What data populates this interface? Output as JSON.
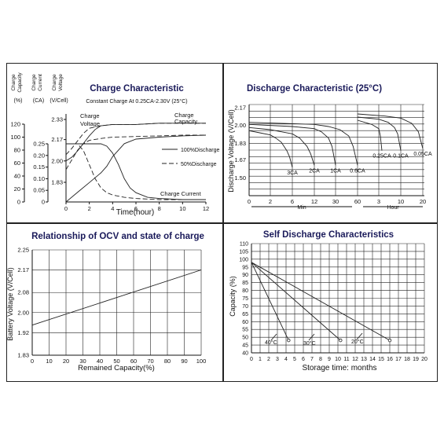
{
  "chart_data": [
    {
      "type": "line",
      "title": "Charge Characteristic",
      "subtitle": "Constant Charge At 0.25CA-2.30V (25°C)",
      "xlabel": "Time(hour)",
      "x_ticks": [
        "0",
        "2",
        "4",
        "6",
        "8",
        "10",
        "12"
      ],
      "xlim": [
        0,
        12
      ],
      "axis_headers": [
        "Charge Capacity (%)",
        "Charge Current (CA)",
        "Charge Voltage (V/Cell)"
      ],
      "axis_header_lines": [
        [
          "Charge",
          "Capacity",
          "(%)"
        ],
        [
          "Charge",
          "Current",
          "(CA)"
        ],
        [
          "Charge",
          "Voltage",
          "(V/Cell)"
        ]
      ],
      "ylim_capacity": [
        0,
        120
      ],
      "ylim_current": [
        0,
        0.25
      ],
      "ylim_voltage": [
        1.83,
        2.33
      ],
      "y_ticks_capacity": [
        "0",
        "20",
        "40",
        "60",
        "80",
        "100",
        "120"
      ],
      "y_ticks_current": [
        "0",
        "0.05",
        "0.10",
        "0.15",
        "0.20",
        "0.25"
      ],
      "y_ticks_voltage": [
        "1.83",
        "2.00",
        "2.17",
        "2.33"
      ],
      "legend": [
        "100%Discharge",
        "50%Discharge"
      ],
      "labels": {
        "voltage": "Charge Voltage",
        "capacity": "Charge Capacity",
        "current": "Charge Current"
      },
      "series": [
        {
          "name": "Charge Voltage",
          "discharge": "100%Discharge",
          "x": [
            0,
            0.5,
            1,
            1.5,
            2,
            2.5,
            3,
            4,
            6,
            8,
            10,
            12
          ],
          "y": [
            2.0,
            2.03,
            2.08,
            2.14,
            2.2,
            2.25,
            2.28,
            2.29,
            2.29,
            2.3,
            2.3,
            2.3
          ]
        },
        {
          "name": "Charge Voltage",
          "discharge": "50%Discharge",
          "x": [
            0,
            0.5,
            1,
            1.5,
            2,
            3,
            4,
            6,
            8,
            10,
            12
          ],
          "y": [
            2.05,
            2.1,
            2.16,
            2.22,
            2.26,
            2.28,
            2.29,
            2.29,
            2.3,
            2.3,
            2.3
          ]
        },
        {
          "name": "Charge Capacity",
          "discharge": "100%Discharge",
          "x": [
            0,
            1,
            2,
            3,
            3.5,
            4,
            5,
            6,
            8,
            10,
            12
          ],
          "y": [
            0,
            15,
            30,
            45,
            55,
            70,
            90,
            97,
            100,
            102,
            103
          ]
        },
        {
          "name": "Charge Capacity",
          "discharge": "50%Discharge",
          "x": [
            0,
            0.5,
            1,
            1.5,
            2,
            3,
            4,
            6,
            8,
            10,
            12
          ],
          "y": [
            50,
            65,
            80,
            90,
            95,
            98,
            100,
            101,
            102,
            103,
            103
          ]
        },
        {
          "name": "Charge Current",
          "discharge": "100%Discharge",
          "x": [
            0,
            3,
            3.5,
            4,
            4.5,
            5,
            5.5,
            6,
            7,
            8,
            10,
            12
          ],
          "y": [
            0.25,
            0.25,
            0.24,
            0.21,
            0.16,
            0.1,
            0.06,
            0.04,
            0.02,
            0.015,
            0.01,
            0.01
          ]
        },
        {
          "name": "Charge Current",
          "discharge": "50%Discharge",
          "x": [
            0,
            1,
            1.5,
            2,
            2.5,
            3,
            3.5,
            4,
            5,
            6,
            8,
            10,
            12
          ],
          "y": [
            0.25,
            0.25,
            0.22,
            0.16,
            0.1,
            0.06,
            0.04,
            0.03,
            0.02,
            0.015,
            0.01,
            0.01,
            0.01
          ]
        }
      ]
    },
    {
      "type": "line",
      "title": "Discharge Characteristic (25°C)",
      "ylabel": "Discharge Voltage (V/Cell)",
      "y_ticks": [
        "1.50",
        "1.67",
        "1.83",
        "2.00",
        "2.17"
      ],
      "ylim": [
        1.33,
        2.2
      ],
      "x_ticks": [
        "0",
        "2",
        "6",
        "12",
        "30",
        "60",
        "3",
        "10",
        "20"
      ],
      "x_tick_positions_min": [
        0,
        2,
        6,
        12,
        30,
        60
      ],
      "x_tick_positions_hour": [
        3,
        10,
        20
      ],
      "x_segment_labels": [
        "Min",
        "Hour"
      ],
      "series": [
        {
          "name": "3CA",
          "x_min": [
            0,
            1,
            2,
            3,
            4,
            5,
            5.5,
            6
          ],
          "y": [
            1.95,
            1.93,
            1.91,
            1.88,
            1.84,
            1.76,
            1.7,
            1.6
          ]
        },
        {
          "name": "2CA",
          "x_min": [
            0,
            2,
            4,
            6,
            8,
            10,
            11,
            12
          ],
          "y": [
            1.98,
            1.96,
            1.94,
            1.92,
            1.88,
            1.8,
            1.73,
            1.62
          ]
        },
        {
          "name": "1CA",
          "x_min": [
            0,
            6,
            12,
            18,
            24,
            27,
            30
          ],
          "y": [
            2.01,
            1.99,
            1.97,
            1.94,
            1.88,
            1.8,
            1.62
          ]
        },
        {
          "name": "0.6CA",
          "x_min": [
            0,
            12,
            24,
            36,
            48,
            54,
            60
          ],
          "y": [
            2.03,
            2.01,
            1.99,
            1.96,
            1.9,
            1.8,
            1.62
          ]
        },
        {
          "name": "0.25CA",
          "x_hour": [
            0,
            1,
            2,
            3,
            3.5,
            4
          ],
          "y": [
            2.05,
            2.03,
            2.01,
            1.97,
            1.9,
            1.76
          ]
        },
        {
          "name": "0.1CA",
          "x_hour": [
            0,
            3,
            6,
            8,
            9,
            10
          ],
          "y": [
            2.08,
            2.06,
            2.03,
            1.98,
            1.92,
            1.76
          ]
        },
        {
          "name": "0.05CA",
          "x_hour": [
            0,
            5,
            10,
            15,
            18,
            20
          ],
          "y": [
            2.11,
            2.09,
            2.07,
            2.02,
            1.94,
            1.78
          ]
        }
      ]
    },
    {
      "type": "line",
      "title": "Relationship of OCV and state of charge",
      "xlabel": "Remained Capacity(%)",
      "ylabel": "Battery Voltage (V/Cell)",
      "x_ticks": [
        "0",
        "10",
        "20",
        "30",
        "40",
        "50",
        "60",
        "70",
        "80",
        "90",
        "100"
      ],
      "xlim": [
        0,
        100
      ],
      "y_ticks": [
        "1.83",
        "1.92",
        "2.00",
        "2.08",
        "2.17",
        "2.25"
      ],
      "ylim": [
        1.83,
        2.25
      ],
      "series": [
        {
          "x": [
            0,
            100
          ],
          "y": [
            1.95,
            2.17
          ]
        }
      ]
    },
    {
      "type": "line",
      "title": "Self Discharge Characteristics",
      "xlabel": "Storage time: months",
      "ylabel": "Capacity (%)",
      "x_ticks": [
        "0",
        "1",
        "2",
        "3",
        "4",
        "5",
        "6",
        "7",
        "8",
        "9",
        "10",
        "11",
        "12",
        "13",
        "14",
        "15",
        "16",
        "17",
        "18",
        "19",
        "20"
      ],
      "xlim": [
        0,
        20
      ],
      "y_ticks": [
        "40",
        "45",
        "50",
        "55",
        "60",
        "65",
        "70",
        "75",
        "80",
        "85",
        "90",
        "95",
        "100",
        "105",
        "110"
      ],
      "ylim": [
        40,
        110
      ],
      "series": [
        {
          "name": "40°C",
          "x": [
            0,
            4.3
          ],
          "y": [
            98,
            48
          ]
        },
        {
          "name": "30°C",
          "x": [
            0,
            10.3
          ],
          "y": [
            98,
            48
          ]
        },
        {
          "name": "20°C",
          "x": [
            0,
            16
          ],
          "y": [
            98,
            48
          ]
        }
      ]
    }
  ]
}
